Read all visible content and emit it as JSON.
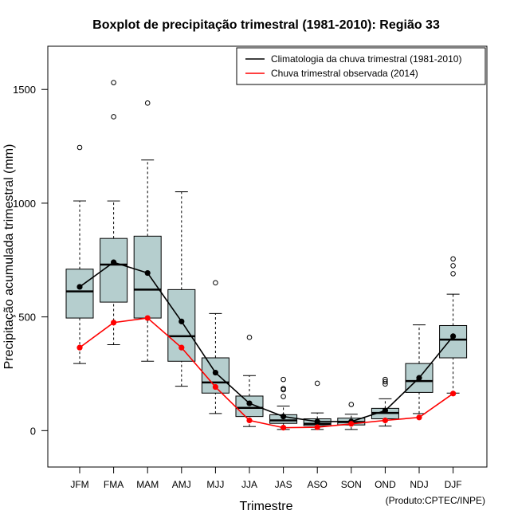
{
  "chart_data": {
    "type": "boxplot",
    "title": "Boxplot de precipitação trimestral (1981-2010): Região 33",
    "xlabel": "Trimestre",
    "ylabel": "Precipitação acumulada trimestral (mm)",
    "ylim": [
      -160,
      1690
    ],
    "yticks": [
      0,
      500,
      1000,
      1500
    ],
    "categories": [
      "JFM",
      "FMA",
      "MAM",
      "AMJ",
      "MJJ",
      "JJA",
      "JAS",
      "ASO",
      "SON",
      "OND",
      "NDJ",
      "DJF"
    ],
    "boxes": [
      {
        "min": 295,
        "q1": 495,
        "median": 612,
        "q3": 710,
        "max": 1010,
        "outliers": [
          1245
        ]
      },
      {
        "min": 378,
        "q1": 565,
        "median": 730,
        "q3": 845,
        "max": 1010,
        "outliers": [
          1380,
          1530
        ]
      },
      {
        "min": 305,
        "q1": 495,
        "median": 620,
        "q3": 855,
        "max": 1190,
        "outliers": [
          1440
        ]
      },
      {
        "min": 195,
        "q1": 305,
        "median": 415,
        "q3": 620,
        "max": 1050,
        "outliers": []
      },
      {
        "min": 75,
        "q1": 165,
        "median": 212,
        "q3": 320,
        "max": 515,
        "outliers": [
          650
        ]
      },
      {
        "min": 18,
        "q1": 62,
        "median": 100,
        "q3": 152,
        "max": 242,
        "outliers": [
          410
        ]
      },
      {
        "min": 5,
        "q1": 32,
        "median": 45,
        "q3": 70,
        "max": 108,
        "outliers": [
          150,
          180,
          185,
          225
        ]
      },
      {
        "min": 5,
        "q1": 22,
        "median": 30,
        "q3": 52,
        "max": 78,
        "outliers": [
          208
        ]
      },
      {
        "min": 5,
        "q1": 25,
        "median": 38,
        "q3": 55,
        "max": 72,
        "outliers": [
          115
        ]
      },
      {
        "min": 20,
        "q1": 52,
        "median": 78,
        "q3": 98,
        "max": 140,
        "outliers": [
          205,
          215,
          225
        ]
      },
      {
        "min": 75,
        "q1": 168,
        "median": 218,
        "q3": 295,
        "max": 465,
        "outliers": []
      },
      {
        "min": 165,
        "q1": 320,
        "median": 400,
        "q3": 462,
        "max": 600,
        "outliers": [
          690,
          725,
          755
        ]
      }
    ],
    "series": [
      {
        "name": "Climatologia da chuva trimestral (1981-2010)",
        "color": "#000000",
        "values": [
          632,
          740,
          693,
          480,
          255,
          120,
          62,
          40,
          40,
          88,
          232,
          415
        ]
      },
      {
        "name": "Chuva trimestral observada (2014)",
        "color": "#ff0000",
        "values": [
          365,
          475,
          495,
          365,
          192,
          45,
          13,
          15,
          30,
          45,
          58,
          163
        ]
      }
    ],
    "box_fill": "#b5cece",
    "credit": "(Produto:CPTEC/INPE)"
  }
}
